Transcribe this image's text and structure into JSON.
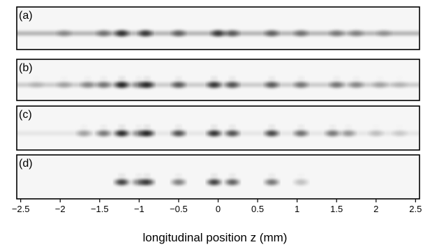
{
  "panels": [
    {
      "label": "(a)",
      "streak": 0.62,
      "blobs": [
        {
          "z": -1.95,
          "i": 0.3
        },
        {
          "z": -1.45,
          "i": 0.45
        },
        {
          "z": -1.22,
          "i": 0.85
        },
        {
          "z": -0.92,
          "i": 0.8
        },
        {
          "z": -0.5,
          "i": 0.55
        },
        {
          "z": 0.0,
          "i": 0.8
        },
        {
          "z": 0.18,
          "i": 0.6
        },
        {
          "z": 0.68,
          "i": 0.55
        },
        {
          "z": 1.05,
          "i": 0.45
        },
        {
          "z": 1.5,
          "i": 0.4
        },
        {
          "z": 1.75,
          "i": 0.35
        },
        {
          "z": 2.1,
          "i": 0.25
        }
      ]
    },
    {
      "label": "(b)",
      "streak": 0.4,
      "blobs": [
        {
          "z": -2.3,
          "i": 0.15
        },
        {
          "z": -1.95,
          "i": 0.25
        },
        {
          "z": -1.65,
          "i": 0.4
        },
        {
          "z": -1.45,
          "i": 0.5
        },
        {
          "z": -1.22,
          "i": 0.95
        },
        {
          "z": -1.0,
          "i": 0.45
        },
        {
          "z": -0.9,
          "i": 0.9
        },
        {
          "z": -0.5,
          "i": 0.65
        },
        {
          "z": -0.05,
          "i": 0.85
        },
        {
          "z": 0.18,
          "i": 0.7
        },
        {
          "z": 0.68,
          "i": 0.65
        },
        {
          "z": 1.05,
          "i": 0.5
        },
        {
          "z": 1.5,
          "i": 0.5
        },
        {
          "z": 1.75,
          "i": 0.4
        },
        {
          "z": 2.05,
          "i": 0.25
        },
        {
          "z": 2.3,
          "i": 0.15
        }
      ]
    },
    {
      "label": "(c)",
      "streak": 0.15,
      "blobs": [
        {
          "z": -1.7,
          "i": 0.35
        },
        {
          "z": -1.45,
          "i": 0.55
        },
        {
          "z": -1.22,
          "i": 0.95
        },
        {
          "z": -1.0,
          "i": 0.5
        },
        {
          "z": -0.9,
          "i": 0.95
        },
        {
          "z": -0.5,
          "i": 0.75
        },
        {
          "z": -0.05,
          "i": 0.9
        },
        {
          "z": 0.18,
          "i": 0.75
        },
        {
          "z": 0.68,
          "i": 0.8
        },
        {
          "z": 1.05,
          "i": 0.6
        },
        {
          "z": 1.45,
          "i": 0.55
        },
        {
          "z": 1.65,
          "i": 0.4
        },
        {
          "z": 2.0,
          "i": 0.2
        },
        {
          "z": 2.3,
          "i": 0.15
        }
      ]
    },
    {
      "label": "(d)",
      "streak": 0.0,
      "blobs": [
        {
          "z": -1.22,
          "i": 0.85
        },
        {
          "z": -1.0,
          "i": 0.55
        },
        {
          "z": -0.9,
          "i": 0.85
        },
        {
          "z": -0.5,
          "i": 0.55
        },
        {
          "z": -0.05,
          "i": 0.85
        },
        {
          "z": 0.18,
          "i": 0.7
        },
        {
          "z": 0.68,
          "i": 0.6
        },
        {
          "z": 1.05,
          "i": 0.25
        }
      ]
    }
  ],
  "axis": {
    "xmin": -2.55,
    "xmax": 2.55,
    "ticks": [
      -2.5,
      -2,
      -1.5,
      -1,
      -0.5,
      0,
      0.5,
      1,
      1.5,
      2,
      2.5
    ],
    "tick_labels": [
      "−2.5",
      "−2",
      "−1.5",
      "−1",
      "−0.5",
      "0",
      "0.5",
      "1",
      "1.5",
      "2",
      "2.5"
    ],
    "title": "longitudinal position z (mm)"
  }
}
